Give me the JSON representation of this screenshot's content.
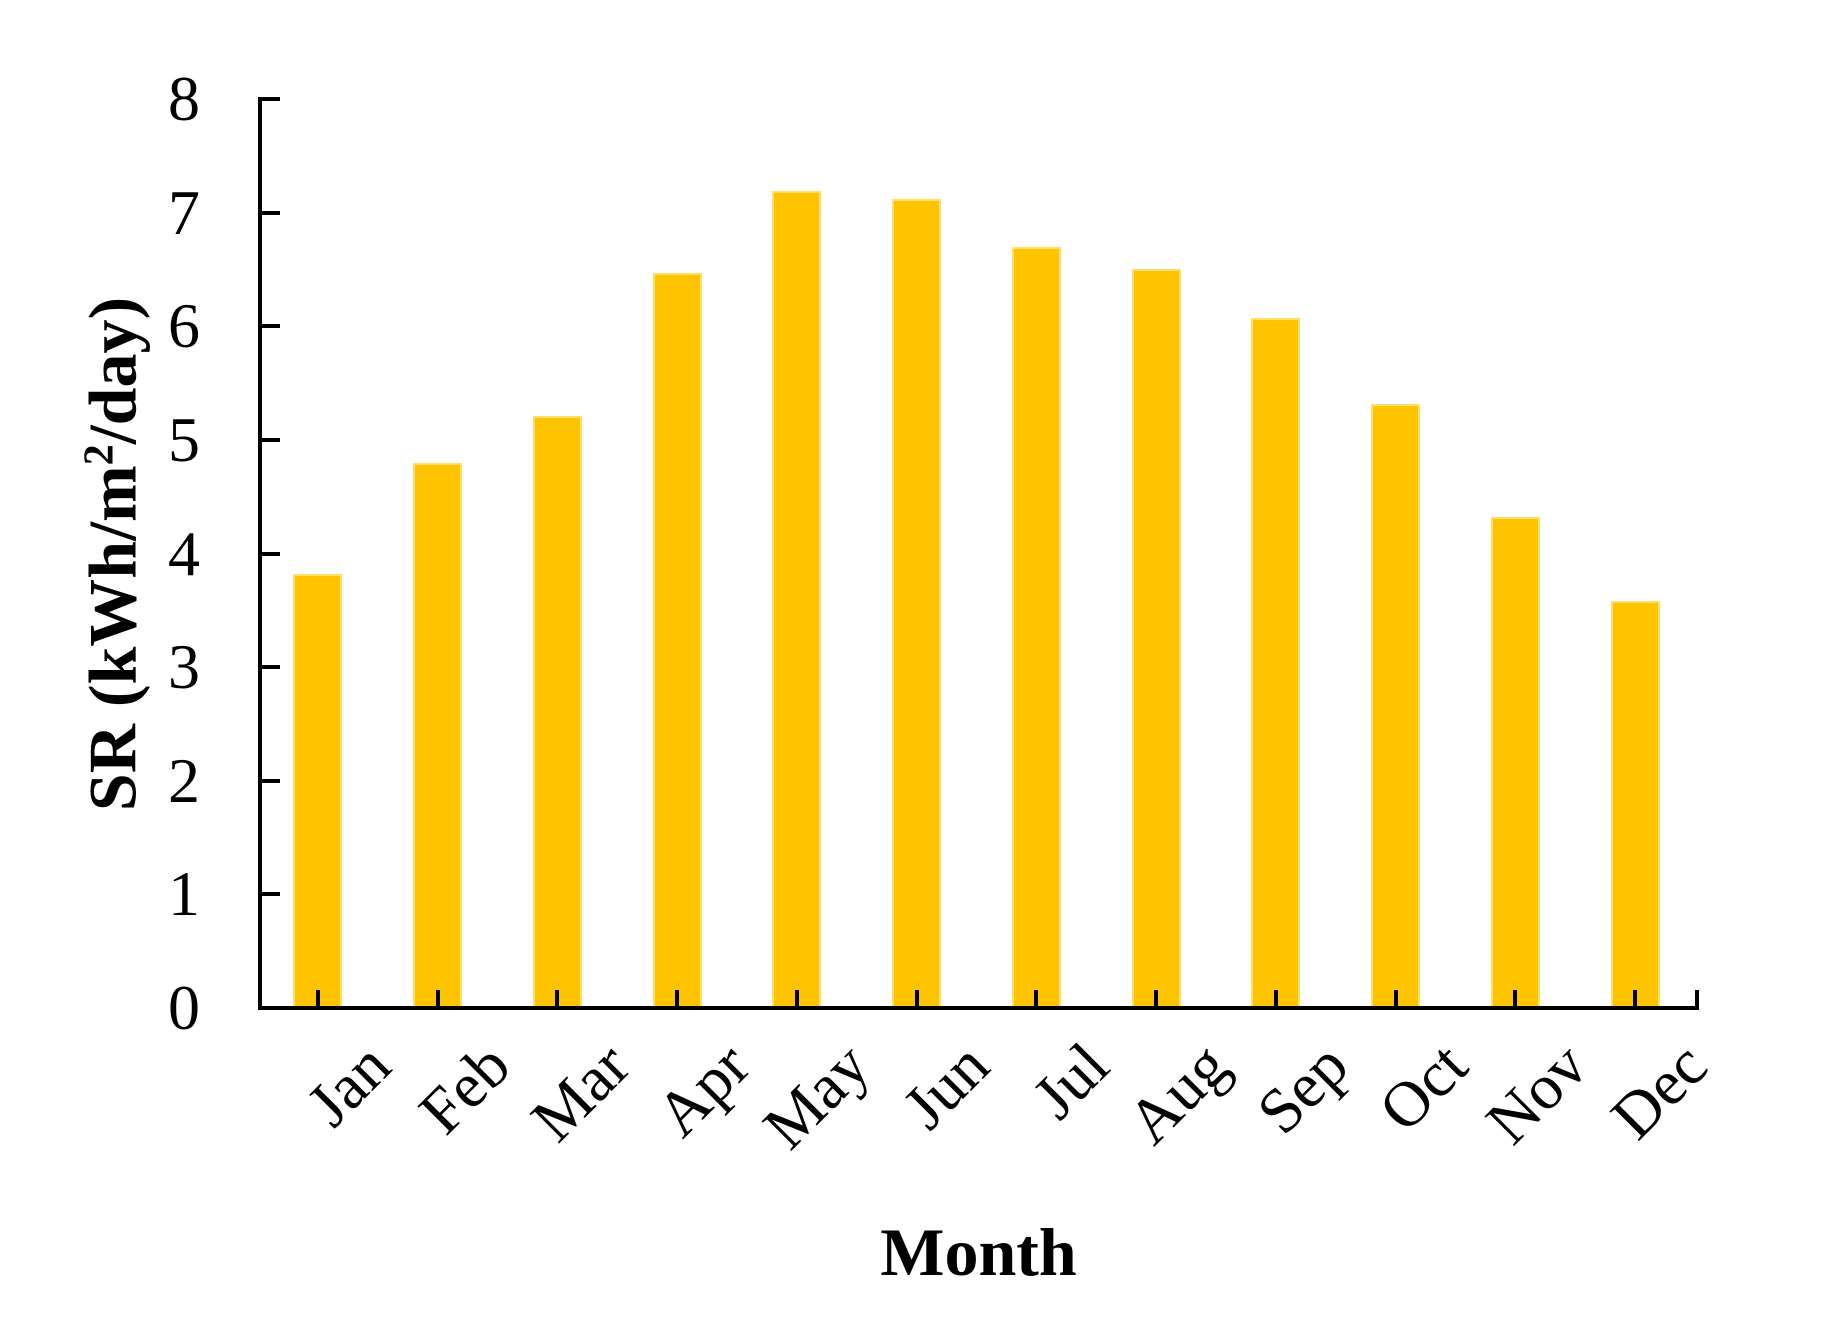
{
  "chart_data": {
    "type": "bar",
    "title": "",
    "categories": [
      "Jan",
      "Feb",
      "Mar",
      "Apr",
      "May",
      "Jun",
      "Jul",
      "Aug",
      "Sep",
      "Oct",
      "Nov",
      "Dec"
    ],
    "values": [
      3.82,
      4.8,
      5.21,
      6.47,
      7.19,
      7.12,
      6.7,
      6.5,
      6.07,
      5.32,
      4.32,
      3.58
    ],
    "xlabel": "Month",
    "ylabel": "SR (kWh/m2/day)",
    "ylabel_parts": {
      "pre": "SR (kWh/m",
      "sup": "2",
      "post": "/day)"
    },
    "ylim": [
      0,
      8
    ],
    "yticks": [
      0,
      1,
      2,
      3,
      4,
      5,
      6,
      7,
      8
    ],
    "legend": "none",
    "grid": false,
    "colors": {
      "bar_fill": "#FFC400",
      "bar_border": "#FFDE6B",
      "axis": "#000000",
      "text": "#000000",
      "background": "#FFFFFF"
    }
  }
}
